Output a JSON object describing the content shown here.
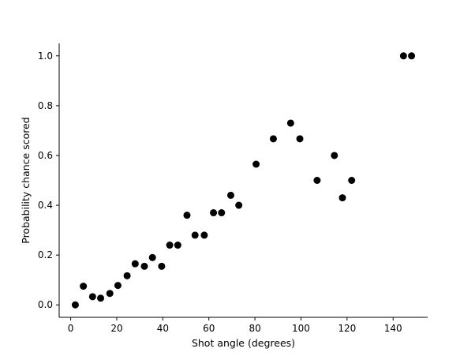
{
  "chart_data": {
    "type": "scatter",
    "title": "",
    "xlabel": "Shot angle (degrees)",
    "ylabel": "Probability chance scored",
    "xlim": [
      -5,
      155
    ],
    "ylim": [
      -0.05,
      1.05
    ],
    "xticks": [
      0,
      20,
      40,
      60,
      80,
      100,
      120,
      140
    ],
    "yticks": [
      0.0,
      0.2,
      0.4,
      0.6,
      0.8,
      1.0
    ],
    "ytick_labels": [
      "0.0",
      "0.2",
      "0.4",
      "0.6",
      "0.8",
      "1.0"
    ],
    "grid": false,
    "marker_color": "#000000",
    "points": [
      {
        "x": 2.0,
        "y": 0.0
      },
      {
        "x": 5.5,
        "y": 0.075
      },
      {
        "x": 9.5,
        "y": 0.033
      },
      {
        "x": 13.0,
        "y": 0.027
      },
      {
        "x": 17.0,
        "y": 0.046
      },
      {
        "x": 20.5,
        "y": 0.078
      },
      {
        "x": 24.5,
        "y": 0.117
      },
      {
        "x": 28.0,
        "y": 0.165
      },
      {
        "x": 32.0,
        "y": 0.155
      },
      {
        "x": 35.5,
        "y": 0.19
      },
      {
        "x": 39.5,
        "y": 0.155
      },
      {
        "x": 43.0,
        "y": 0.24
      },
      {
        "x": 46.5,
        "y": 0.24
      },
      {
        "x": 50.5,
        "y": 0.36
      },
      {
        "x": 54.0,
        "y": 0.28
      },
      {
        "x": 58.0,
        "y": 0.28
      },
      {
        "x": 62.0,
        "y": 0.37
      },
      {
        "x": 65.5,
        "y": 0.37
      },
      {
        "x": 69.5,
        "y": 0.44
      },
      {
        "x": 73.0,
        "y": 0.4
      },
      {
        "x": 80.5,
        "y": 0.565
      },
      {
        "x": 88.0,
        "y": 0.667
      },
      {
        "x": 95.5,
        "y": 0.73
      },
      {
        "x": 99.5,
        "y": 0.667
      },
      {
        "x": 107.0,
        "y": 0.5
      },
      {
        "x": 114.5,
        "y": 0.6
      },
      {
        "x": 118.0,
        "y": 0.43
      },
      {
        "x": 122.0,
        "y": 0.5
      },
      {
        "x": 144.5,
        "y": 1.0
      },
      {
        "x": 148.0,
        "y": 1.0
      }
    ]
  }
}
